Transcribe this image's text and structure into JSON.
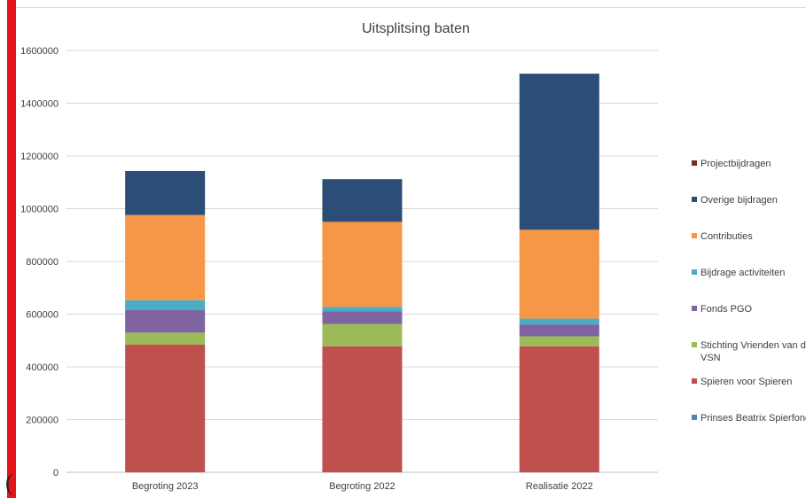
{
  "chart_data": {
    "type": "bar",
    "stacked": true,
    "title": "Uitsplitsing baten",
    "xlabel": "",
    "ylabel": "",
    "ylim": [
      0,
      1600000
    ],
    "yticks": [
      0,
      200000,
      400000,
      600000,
      800000,
      1000000,
      1200000,
      1400000,
      1600000
    ],
    "grid": true,
    "legend_position": "right",
    "categories": [
      "Begroting 2023",
      "Begroting 2022",
      "Realisatie 2022"
    ],
    "series": [
      {
        "name": "Prinses Beatrix Spierfonds",
        "color": "#4f81bd",
        "values": [
          0,
          0,
          0
        ]
      },
      {
        "name": "Spieren voor Spieren",
        "color": "#c0504d",
        "values": [
          485000,
          478000,
          478000
        ]
      },
      {
        "name": "Stichting Vrienden van de VSN",
        "color": "#9bbb59",
        "values": [
          45000,
          85000,
          38000
        ]
      },
      {
        "name": "Fonds PGO",
        "color": "#8064a2",
        "values": [
          85000,
          47000,
          45000
        ]
      },
      {
        "name": "Bijdrage activiteiten",
        "color": "#4bacc6",
        "values": [
          38000,
          18000,
          22000
        ]
      },
      {
        "name": "Contributies",
        "color": "#f79646",
        "values": [
          323000,
          322000,
          337000
        ]
      },
      {
        "name": "Overige bijdragen",
        "color": "#2c4d75",
        "values": [
          167000,
          162000,
          592000
        ]
      },
      {
        "name": "Projectbijdragen",
        "color": "#772c2a",
        "values": [
          0,
          0,
          0
        ]
      }
    ]
  }
}
